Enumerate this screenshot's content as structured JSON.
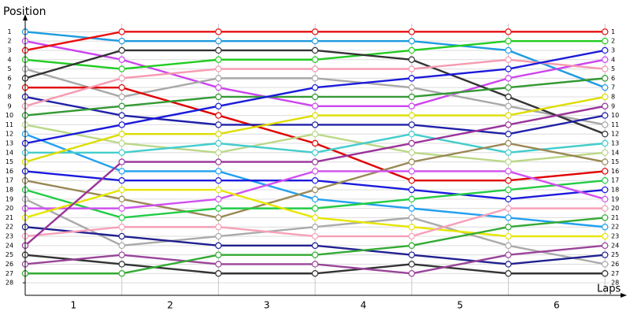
{
  "chart_data": {
    "type": "line",
    "y_label": "Position",
    "x_label": "Laps",
    "laps": [
      1,
      2,
      3,
      4,
      5,
      6
    ],
    "ylim": [
      29.35,
      -0.3
    ],
    "yticks": [
      1,
      2,
      3,
      4,
      5,
      6,
      7,
      8,
      9,
      10,
      11,
      12,
      13,
      14,
      15,
      16,
      17,
      18,
      19,
      20,
      21,
      22,
      23,
      24,
      25,
      26,
      27,
      28
    ],
    "grid": true,
    "series": [
      {
        "color": "#1e9be0",
        "values": [
          1,
          2,
          2,
          2,
          2,
          3,
          7
        ]
      },
      {
        "color": "#cc44ee",
        "values": [
          2,
          4,
          7,
          9,
          9,
          6,
          4
        ]
      },
      {
        "color": "#e81010",
        "values": [
          3,
          1,
          1,
          1,
          1,
          1,
          1
        ]
      },
      {
        "color": "#22cc22",
        "values": [
          4,
          5,
          4,
          4,
          3,
          2,
          2
        ]
      },
      {
        "color": "#a8a8a8",
        "values": [
          5,
          8,
          6,
          6,
          7,
          9,
          11
        ]
      },
      {
        "color": "#333333",
        "values": [
          6,
          3,
          3,
          3,
          4,
          8,
          12
        ]
      },
      {
        "color": "#e00000",
        "values": [
          7,
          7,
          10,
          13,
          17,
          17,
          16
        ]
      },
      {
        "color": "#2020a8",
        "values": [
          8,
          10,
          11,
          11,
          11,
          12,
          10
        ]
      },
      {
        "color": "#f59ab0",
        "values": [
          9,
          6,
          5,
          5,
          5,
          4,
          5
        ]
      },
      {
        "color": "#339933",
        "values": [
          10,
          9,
          8,
          8,
          8,
          7,
          6
        ]
      },
      {
        "color": "#bbd888",
        "values": [
          11,
          13,
          14,
          12,
          14,
          15,
          14
        ]
      },
      {
        "color": "#22a0f0",
        "values": [
          12,
          16,
          16,
          19,
          20,
          21,
          22
        ]
      },
      {
        "color": "#1a1adb",
        "values": [
          13,
          11,
          9,
          7,
          6,
          5,
          3
        ]
      },
      {
        "color": "#44cccc",
        "values": [
          14,
          14,
          13,
          14,
          12,
          14,
          13
        ]
      },
      {
        "color": "#dddd00",
        "values": [
          15,
          12,
          12,
          10,
          10,
          10,
          8
        ]
      },
      {
        "color": "#1a1add",
        "values": [
          16,
          17,
          17,
          17,
          18,
          19,
          18
        ]
      },
      {
        "color": "#998855",
        "values": [
          17,
          19,
          21,
          18,
          15,
          13,
          15
        ]
      },
      {
        "color": "#22cc44",
        "values": [
          18,
          21,
          20,
          20,
          19,
          18,
          17
        ]
      },
      {
        "color": "#aaaaaa",
        "values": [
          19,
          24,
          23,
          22,
          21,
          24,
          26
        ]
      },
      {
        "color": "#d050f0",
        "values": [
          20,
          20,
          19,
          16,
          16,
          16,
          19
        ]
      },
      {
        "color": "#e6e600",
        "values": [
          21,
          18,
          18,
          21,
          22,
          23,
          23
        ]
      },
      {
        "color": "#202090",
        "values": [
          22,
          23,
          24,
          24,
          25,
          26,
          25
        ]
      },
      {
        "color": "#f7a0b8",
        "values": [
          23,
          22,
          22,
          23,
          23,
          20,
          20
        ]
      },
      {
        "color": "#993399",
        "values": [
          24,
          15,
          15,
          15,
          13,
          11,
          9
        ]
      },
      {
        "color": "#333333",
        "values": [
          25,
          26,
          27,
          27,
          26,
          27,
          27
        ]
      },
      {
        "color": "#994499",
        "values": [
          26,
          25,
          26,
          26,
          27,
          25,
          24
        ]
      },
      {
        "color": "#33aa33",
        "values": [
          27,
          27,
          25,
          25,
          24,
          22,
          21
        ]
      }
    ]
  }
}
